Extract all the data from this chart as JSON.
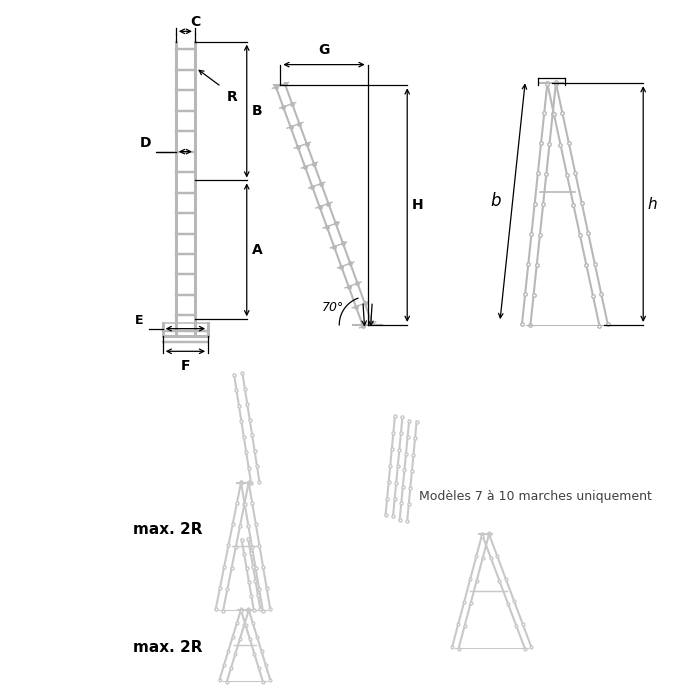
{
  "bg_color": "#ffffff",
  "ladder_color": "#b8b8b8",
  "dim_color": "#000000",
  "ghost_color": "#c8c8c8",
  "labels": {
    "C": "C",
    "R": "R",
    "D": "D",
    "B": "B",
    "A": "A",
    "E": "E",
    "F": "F",
    "G": "G",
    "H": "H",
    "b": "b",
    "h": "h",
    "angle": "70°",
    "max2R_top": "max. 2R",
    "max2R_bot": "max. 2R",
    "modeles": "Modèles 7 à 10 marches uniquement"
  },
  "lw_ladder": 2.2,
  "lw_dim": 0.9,
  "lw_ghost": 1.5,
  "fontsize_label": 10,
  "fontsize_small": 9
}
